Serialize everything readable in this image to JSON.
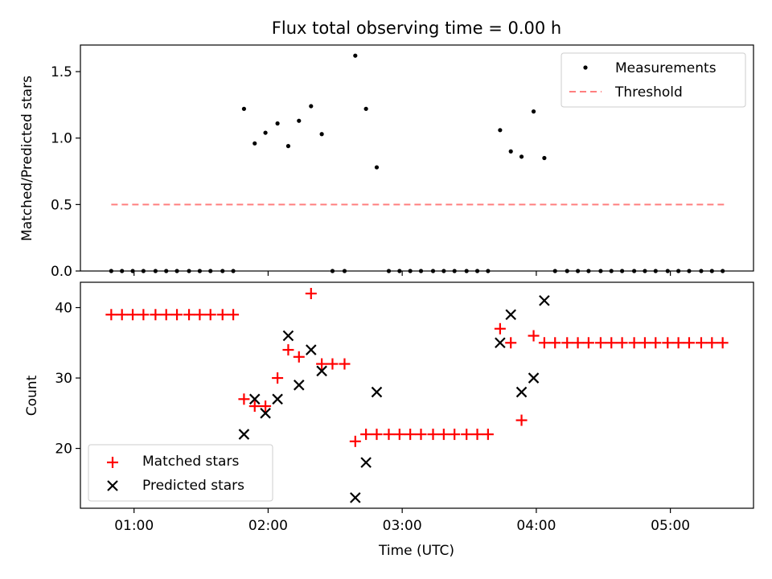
{
  "title": "Flux total observing time = 0.00 h",
  "colors": {
    "threshold": "#ff7f7f",
    "matched": "#ff0000",
    "predicted": "#000000",
    "measurement": "#000000"
  },
  "chart_data": [
    {
      "type": "scatter",
      "name": "ratio",
      "ylabel": "Matched/Predicted stars",
      "ylim": [
        0,
        1.7
      ],
      "yticks": [
        0.0,
        0.5,
        1.0,
        1.5
      ],
      "ytick_labels": [
        "0.0",
        "0.5",
        "1.0",
        "1.5"
      ],
      "legend": [
        "Measurements",
        "Threshold"
      ],
      "legend_position": "top-right",
      "threshold": {
        "value": 0.5,
        "x_start": 0.83,
        "x_end": 5.4
      },
      "series": [
        {
          "name": "Measurements",
          "points": [
            [
              0.83,
              0
            ],
            [
              0.91,
              0
            ],
            [
              0.99,
              0
            ],
            [
              1.07,
              0
            ],
            [
              1.16,
              0
            ],
            [
              1.24,
              0
            ],
            [
              1.32,
              0
            ],
            [
              1.41,
              0
            ],
            [
              1.49,
              0
            ],
            [
              1.57,
              0
            ],
            [
              1.66,
              0
            ],
            [
              1.74,
              0
            ],
            [
              1.82,
              1.22
            ],
            [
              1.9,
              0.96
            ],
            [
              1.98,
              1.04
            ],
            [
              2.07,
              1.11
            ],
            [
              2.15,
              0.94
            ],
            [
              2.23,
              1.13
            ],
            [
              2.32,
              1.24
            ],
            [
              2.4,
              1.03
            ],
            [
              2.48,
              0
            ],
            [
              2.57,
              0
            ],
            [
              2.65,
              1.62
            ],
            [
              2.73,
              1.22
            ],
            [
              2.81,
              0.78
            ],
            [
              2.9,
              0
            ],
            [
              2.98,
              0
            ],
            [
              3.06,
              0
            ],
            [
              3.14,
              0
            ],
            [
              3.23,
              0
            ],
            [
              3.31,
              0
            ],
            [
              3.39,
              0
            ],
            [
              3.48,
              0
            ],
            [
              3.56,
              0
            ],
            [
              3.64,
              0
            ],
            [
              3.73,
              1.06
            ],
            [
              3.81,
              0.9
            ],
            [
              3.89,
              0.86
            ],
            [
              3.98,
              1.2
            ],
            [
              4.06,
              0.85
            ],
            [
              4.14,
              0
            ],
            [
              4.23,
              0
            ],
            [
              4.31,
              0
            ],
            [
              4.39,
              0
            ],
            [
              4.48,
              0
            ],
            [
              4.56,
              0
            ],
            [
              4.64,
              0
            ],
            [
              4.73,
              0
            ],
            [
              4.81,
              0
            ],
            [
              4.89,
              0
            ],
            [
              4.98,
              0
            ],
            [
              5.06,
              0
            ],
            [
              5.14,
              0
            ],
            [
              5.23,
              0
            ],
            [
              5.31,
              0
            ],
            [
              5.39,
              0
            ]
          ]
        }
      ]
    },
    {
      "type": "scatter",
      "name": "counts",
      "xlabel": "Time (UTC)",
      "ylabel": "Count",
      "xlim": [
        0.6,
        5.62
      ],
      "ylim": [
        11.5,
        43.6
      ],
      "yticks": [
        20,
        30,
        40
      ],
      "ytick_labels": [
        "20",
        "30",
        "40"
      ],
      "xticks": [
        1,
        2,
        3,
        4,
        5
      ],
      "xtick_labels": [
        "01:00",
        "02:00",
        "03:00",
        "04:00",
        "05:00"
      ],
      "legend": [
        "Matched stars",
        "Predicted stars"
      ],
      "legend_position": "bottom-left",
      "series": [
        {
          "name": "Matched stars",
          "marker": "plus",
          "points": [
            [
              0.83,
              39
            ],
            [
              0.91,
              39
            ],
            [
              0.99,
              39
            ],
            [
              1.07,
              39
            ],
            [
              1.16,
              39
            ],
            [
              1.24,
              39
            ],
            [
              1.32,
              39
            ],
            [
              1.41,
              39
            ],
            [
              1.49,
              39
            ],
            [
              1.57,
              39
            ],
            [
              1.66,
              39
            ],
            [
              1.74,
              39
            ],
            [
              1.82,
              27
            ],
            [
              1.9,
              26
            ],
            [
              1.98,
              26
            ],
            [
              2.07,
              30
            ],
            [
              2.15,
              34
            ],
            [
              2.23,
              33
            ],
            [
              2.32,
              42
            ],
            [
              2.4,
              32
            ],
            [
              2.48,
              32
            ],
            [
              2.57,
              32
            ],
            [
              2.65,
              21
            ],
            [
              2.73,
              22
            ],
            [
              2.81,
              22
            ],
            [
              2.9,
              22
            ],
            [
              2.98,
              22
            ],
            [
              3.06,
              22
            ],
            [
              3.14,
              22
            ],
            [
              3.23,
              22
            ],
            [
              3.31,
              22
            ],
            [
              3.39,
              22
            ],
            [
              3.48,
              22
            ],
            [
              3.56,
              22
            ],
            [
              3.64,
              22
            ],
            [
              3.73,
              37
            ],
            [
              3.81,
              35
            ],
            [
              3.89,
              24
            ],
            [
              3.98,
              36
            ],
            [
              4.06,
              35
            ],
            [
              4.14,
              35
            ],
            [
              4.23,
              35
            ],
            [
              4.31,
              35
            ],
            [
              4.39,
              35
            ],
            [
              4.48,
              35
            ],
            [
              4.56,
              35
            ],
            [
              4.64,
              35
            ],
            [
              4.73,
              35
            ],
            [
              4.81,
              35
            ],
            [
              4.89,
              35
            ],
            [
              4.98,
              35
            ],
            [
              5.06,
              35
            ],
            [
              5.14,
              35
            ],
            [
              5.23,
              35
            ],
            [
              5.31,
              35
            ],
            [
              5.39,
              35
            ]
          ]
        },
        {
          "name": "Predicted stars",
          "marker": "x",
          "points": [
            [
              1.82,
              22
            ],
            [
              1.9,
              27
            ],
            [
              1.98,
              25
            ],
            [
              2.07,
              27
            ],
            [
              2.15,
              36
            ],
            [
              2.23,
              29
            ],
            [
              2.32,
              34
            ],
            [
              2.4,
              31
            ],
            [
              2.65,
              13
            ],
            [
              2.73,
              18
            ],
            [
              2.81,
              28
            ],
            [
              3.73,
              35
            ],
            [
              3.81,
              39
            ],
            [
              3.89,
              28
            ],
            [
              3.98,
              30
            ],
            [
              4.06,
              41
            ]
          ]
        }
      ]
    }
  ]
}
